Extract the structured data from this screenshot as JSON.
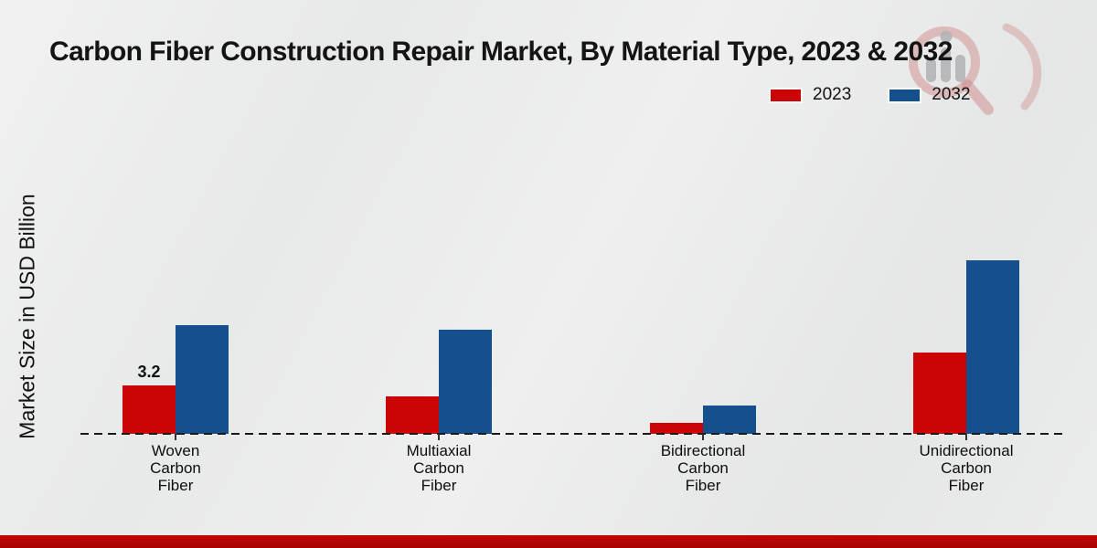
{
  "title": "Carbon Fiber Construction Repair Market, By Material Type, 2023 & 2032",
  "y_axis_label": "Market Size in USD Billion",
  "colors": {
    "series_2023": "#cb0505",
    "series_2032": "#15508e",
    "footer_strip": "#b30404",
    "background": "#e9eaea",
    "axis_line": "#1a1a1a",
    "text": "#141414"
  },
  "chart_data": {
    "type": "bar",
    "title": "Carbon Fiber Construction Repair Market, By Material Type, 2023 & 2032",
    "xlabel": "",
    "ylabel": "Market Size in USD Billion",
    "categories": [
      "Woven Carbon Fiber",
      "Multiaxial Carbon Fiber",
      "Bidirectional Carbon Fiber",
      "Unidirectional Carbon Fiber"
    ],
    "series": [
      {
        "name": "2023",
        "color": "#cb0505",
        "values": [
          3.2,
          2.5,
          0.7,
          5.4
        ]
      },
      {
        "name": "2032",
        "color": "#15508e",
        "values": [
          7.2,
          6.9,
          1.9,
          11.5
        ]
      }
    ],
    "data_labels": [
      {
        "series": "2023",
        "category": "Woven Carbon Fiber",
        "text": "3.2"
      }
    ],
    "ylim": [
      0,
      12
    ],
    "grid": false,
    "y_axis_ticks_shown": false,
    "x_axis_line_style": "dashed",
    "legend_position": "top-right"
  }
}
